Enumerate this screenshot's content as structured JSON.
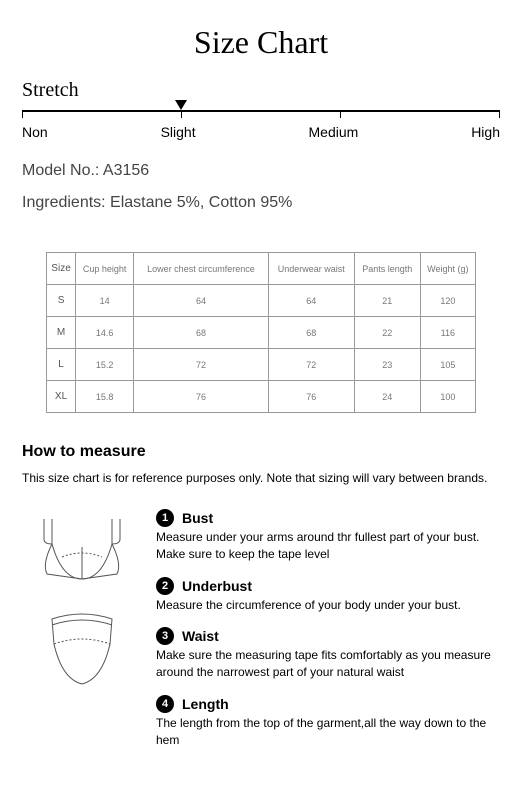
{
  "title": "Size Chart",
  "stretch": {
    "label": "Stretch",
    "levels": [
      "Non",
      "Slight",
      "Medium",
      "High"
    ],
    "pointer_position_pct": 33.3
  },
  "model_line": "Model No.: A3156",
  "ingredients_line": "Ingredients: Elastane 5%, Cotton 95%",
  "table": {
    "headers": [
      "Size",
      "Cup height",
      "Lower chest circumference",
      "Underwear waist",
      "Pants length",
      "Weight (g)"
    ],
    "rows": [
      [
        "S",
        "14",
        "64",
        "64",
        "21",
        "120"
      ],
      [
        "M",
        "14.6",
        "68",
        "68",
        "22",
        "116"
      ],
      [
        "L",
        "15.2",
        "72",
        "72",
        "23",
        "105"
      ],
      [
        "XL",
        "15.8",
        "76",
        "76",
        "24",
        "100"
      ]
    ]
  },
  "how": {
    "title": "How to measure",
    "subtitle": "This size chart is for reference purposes only. Note that sizing will vary between brands.",
    "items": [
      {
        "num": "1",
        "name": "Bust",
        "desc": "Measure under your arms around thr fullest part of your bust. Make sure to keep the tape level"
      },
      {
        "num": "2",
        "name": "Underbust",
        "desc": "Measure the circumference of your body under your bust."
      },
      {
        "num": "3",
        "name": "Waist",
        "desc": "Make sure the measuring tape fits comfortably as you measure around the narrowest part of your natural waist"
      },
      {
        "num": "4",
        "name": "Length",
        "desc": "The length from the top of the garment,all the way down to the hem"
      }
    ]
  },
  "colors": {
    "line": "#000000",
    "text_muted": "#444444",
    "table_border": "#999999",
    "table_text": "#777777"
  }
}
